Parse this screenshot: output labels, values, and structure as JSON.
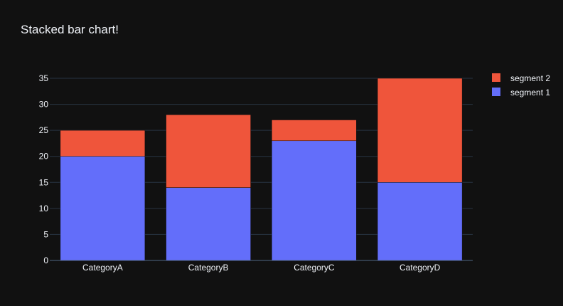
{
  "chart_data": {
    "type": "bar",
    "stacked": true,
    "title": "Stacked bar chart!",
    "xlabel": "",
    "ylabel": "",
    "categories": [
      "CategoryA",
      "CategoryB",
      "CategoryC",
      "CategoryD"
    ],
    "series": [
      {
        "name": "segment 1",
        "values": [
          20,
          14,
          23,
          15
        ],
        "color": "#636efa"
      },
      {
        "name": "segment 2",
        "values": [
          5,
          14,
          4,
          20
        ],
        "color": "#ef553b"
      }
    ],
    "ylim": [
      0,
      35
    ],
    "yticks": [
      0,
      5,
      10,
      15,
      20,
      25,
      30,
      35
    ],
    "grid": true,
    "legend_position": "top-right",
    "legend_order": [
      "segment 2",
      "segment 1"
    ],
    "background_color": "#111111"
  }
}
